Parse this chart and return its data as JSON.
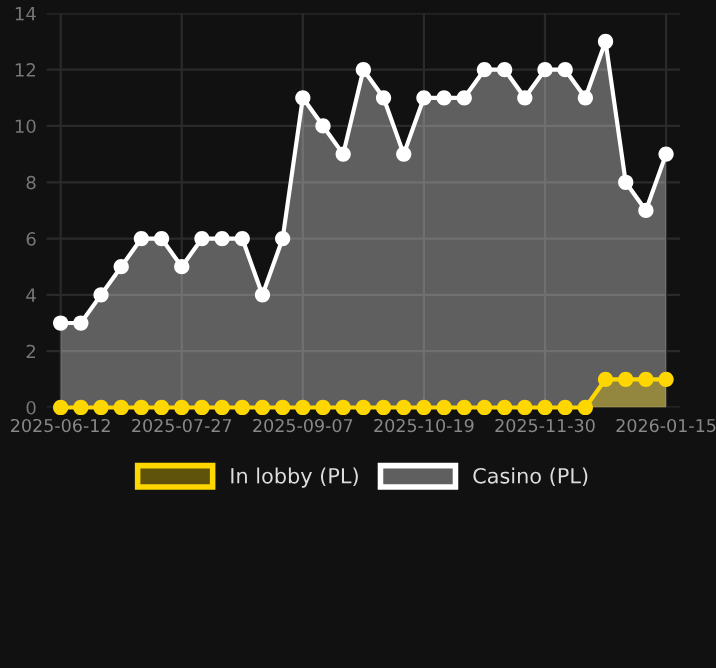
{
  "chart_data": {
    "type": "area",
    "categories": [
      "2025-06-12",
      null,
      null,
      null,
      null,
      null,
      "2025-07-27",
      null,
      null,
      null,
      null,
      null,
      "2025-09-07",
      null,
      null,
      null,
      null,
      null,
      "2025-10-19",
      null,
      null,
      null,
      null,
      null,
      "2025-11-30",
      null,
      null,
      null,
      null,
      null,
      "2026-01-15"
    ],
    "series": [
      {
        "name": "In lobby (PL)",
        "color": "#ffd700",
        "values": [
          0,
          0,
          0,
          0,
          0,
          0,
          0,
          0,
          0,
          0,
          0,
          0,
          0,
          0,
          0,
          0,
          0,
          0,
          0,
          0,
          0,
          0,
          0,
          0,
          0,
          0,
          0,
          1,
          1,
          1,
          1
        ]
      },
      {
        "name": "Casino (PL)",
        "color": "#ffffff",
        "values": [
          3,
          3,
          4,
          5,
          6,
          6,
          5,
          6,
          6,
          6,
          4,
          6,
          11,
          10,
          9,
          12,
          11,
          9,
          11,
          11,
          11,
          12,
          12,
          11,
          12,
          12,
          11,
          13,
          8,
          7,
          9
        ]
      }
    ],
    "ylim": [
      0,
      14
    ],
    "yticks": [
      0,
      2,
      4,
      6,
      8,
      10,
      12,
      14
    ],
    "grid": true,
    "legend": "bottom",
    "marker": "circle",
    "line_style": "solid"
  }
}
